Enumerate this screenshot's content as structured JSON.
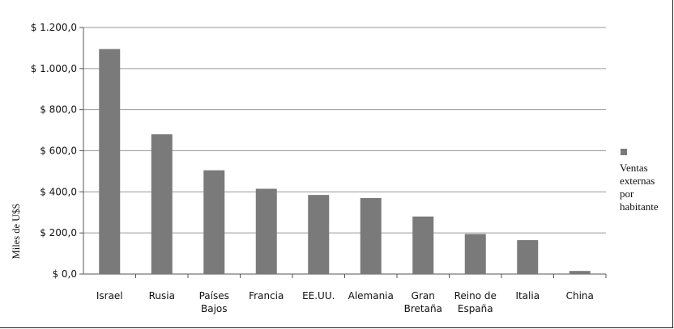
{
  "chart_data": {
    "type": "bar",
    "title": "",
    "xlabel": "",
    "ylabel": "Miles de U$S",
    "ylim": [
      0,
      1200
    ],
    "ytick_values": [
      0,
      200,
      400,
      600,
      800,
      1000,
      1200
    ],
    "ytick_labels": [
      "$ 0,0",
      "$ 200,0",
      "$ 400,0",
      "$ 600,0",
      "$ 800,0",
      "$ 1.000,0",
      "$ 1.200,0"
    ],
    "grid": true,
    "legend_position": "right",
    "categories": [
      [
        "Israel"
      ],
      [
        "Rusia"
      ],
      [
        "Países",
        "Bajos"
      ],
      [
        "Francia"
      ],
      [
        "EE.UU."
      ],
      [
        "Alemania"
      ],
      [
        "Gran",
        "Bretaña"
      ],
      [
        "Reino de",
        "España"
      ],
      [
        "Italia"
      ],
      [
        "China"
      ]
    ],
    "series": [
      {
        "name": [
          "Ventas",
          "externas",
          "por",
          "habitante"
        ],
        "color": "#7a7a7a",
        "values": [
          1095,
          680,
          505,
          415,
          385,
          370,
          280,
          195,
          165,
          15
        ]
      }
    ]
  }
}
